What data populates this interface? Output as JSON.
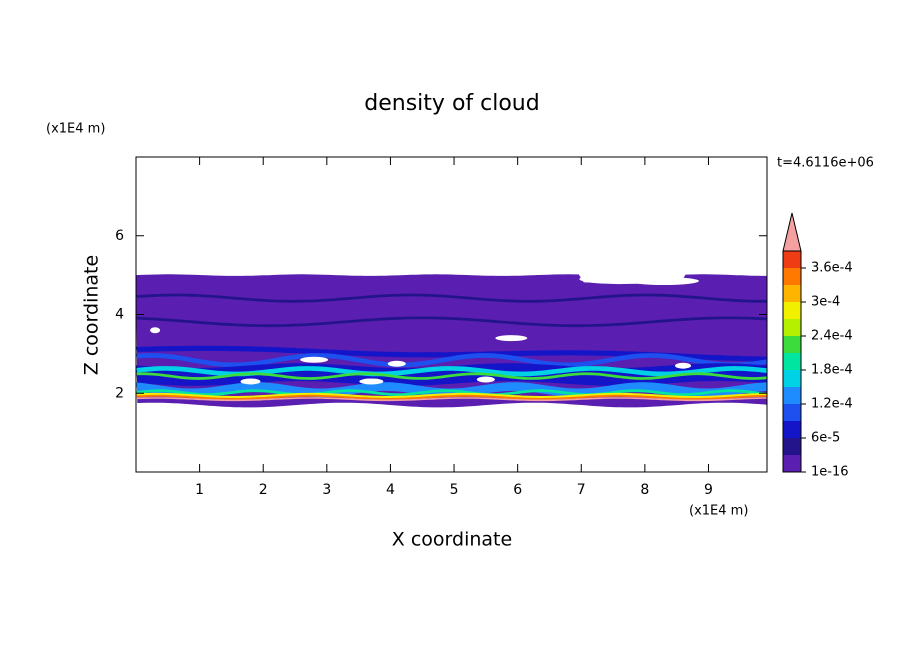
{
  "chart_data": {
    "type": "contour",
    "title": "density of cloud",
    "x_label": "X coordinate",
    "y_label": "Z coordinate",
    "x_unit": "(x1E4 m)",
    "y_unit": "(x1E4 m)",
    "annotation": "t=4.6116e+06",
    "xlim": [
      0,
      9.92
    ],
    "ylim": [
      0,
      8
    ],
    "xticks": [
      1,
      2,
      3,
      4,
      5,
      6,
      7,
      8,
      9
    ],
    "yticks": [
      2,
      4,
      6
    ],
    "colorbar": {
      "levels": [
        1e-16,
        3e-05,
        6e-05,
        9e-05,
        0.00012,
        0.00015,
        0.00018,
        0.00021,
        0.00024,
        0.00027,
        0.0003,
        0.00033,
        0.00036,
        0.00039
      ],
      "colors": [
        "#5a1eb0",
        "#24148c",
        "#1414c8",
        "#1e50f0",
        "#1e8cff",
        "#00d2e6",
        "#00e6a0",
        "#3cdc3c",
        "#b4f000",
        "#f0f000",
        "#ffb400",
        "#ff7800",
        "#f03c14",
        "#f4a0a0"
      ],
      "extend": "max",
      "ticks": [
        {
          "value": 1e-16,
          "label": "1e-16"
        },
        {
          "value": 6e-05,
          "label": "6e-5"
        },
        {
          "value": 0.00012,
          "label": "1.2e-4"
        },
        {
          "value": 0.00018,
          "label": "1.8e-4"
        },
        {
          "value": 0.00024,
          "label": "2.4e-4"
        },
        {
          "value": 0.0003,
          "label": "3e-4"
        },
        {
          "value": 0.00036,
          "label": "3.6e-4"
        }
      ]
    }
  }
}
